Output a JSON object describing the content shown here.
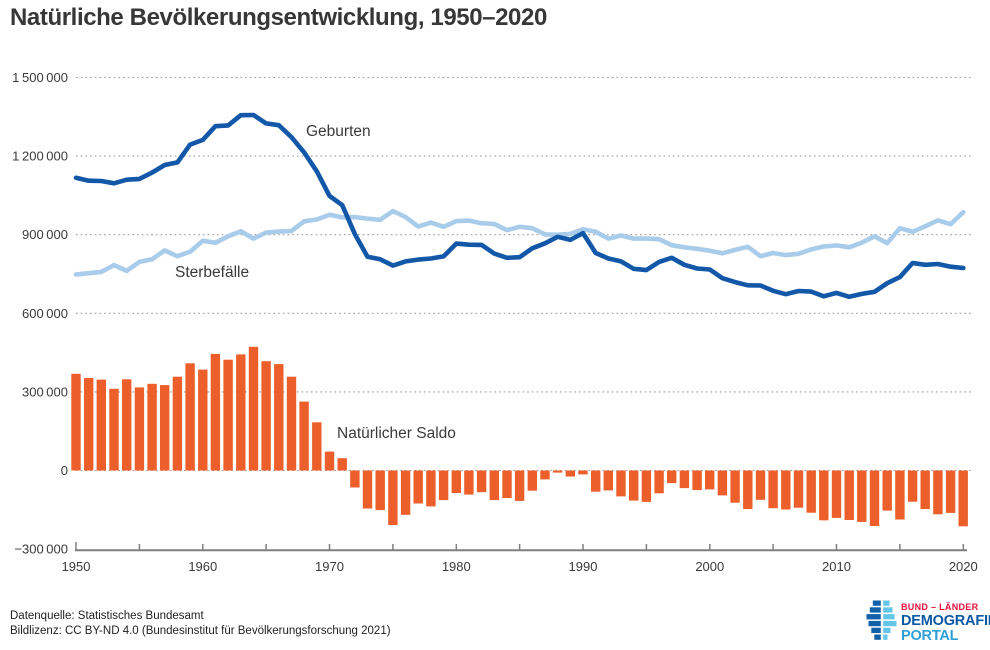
{
  "title": "Natürliche Bevölkerungsentwicklung, 1950–2020",
  "footer": {
    "source": "Datenquelle: Statistisches Bundesamt",
    "license": "Bildlizenz: CC BY-ND 4.0 (Bundesinstitut für Bevölkerungsforschung 2021)"
  },
  "logo": {
    "line1": "BUND – LÄNDER",
    "line2": "DEMOGRAFIE",
    "line3": "PORTAL"
  },
  "colors": {
    "births_line": "#1358a8",
    "deaths_line": "#a8cce9",
    "saldo_bar": "#ec5e2a",
    "grid": "#9b9b9b",
    "axis": "#7f7f7f",
    "text": "#3a3a3a",
    "logo_red": "#e3123d",
    "logo_dark_blue": "#0a57a4",
    "logo_light_blue": "#2e9fd6"
  },
  "chart_data": {
    "type": "combo",
    "title": "Natürliche Bevölkerungsentwicklung, 1950–2020",
    "x_label": "",
    "y_label": "",
    "ylim": [
      -300000,
      1500000
    ],
    "grid": "horizontal dotted",
    "years": [
      1950,
      1951,
      1952,
      1953,
      1954,
      1955,
      1956,
      1957,
      1958,
      1959,
      1960,
      1961,
      1962,
      1963,
      1964,
      1965,
      1966,
      1967,
      1968,
      1969,
      1970,
      1971,
      1972,
      1973,
      1974,
      1975,
      1976,
      1977,
      1978,
      1979,
      1980,
      1981,
      1982,
      1983,
      1984,
      1985,
      1986,
      1987,
      1988,
      1989,
      1990,
      1991,
      1992,
      1993,
      1994,
      1995,
      1996,
      1997,
      1998,
      1999,
      2000,
      2001,
      2002,
      2003,
      2004,
      2005,
      2006,
      2007,
      2008,
      2009,
      2010,
      2011,
      2012,
      2013,
      2014,
      2015,
      2016,
      2017,
      2018,
      2019,
      2020
    ],
    "series": [
      {
        "name": "Geburten",
        "type": "line",
        "color": "#1358a8",
        "values": [
          1117000,
          1106000,
          1105000,
          1096000,
          1110000,
          1113000,
          1137000,
          1166000,
          1176000,
          1244000,
          1262000,
          1314000,
          1317000,
          1356000,
          1357000,
          1325000,
          1318000,
          1272000,
          1214000,
          1142000,
          1048000,
          1013000,
          902000,
          816000,
          806000,
          782000,
          798000,
          805000,
          809000,
          817000,
          866000,
          862000,
          861000,
          828000,
          812000,
          814000,
          848000,
          867000,
          892000,
          880000,
          906000,
          830000,
          809000,
          798000,
          770000,
          765000,
          796000,
          812000,
          785000,
          771000,
          767000,
          734000,
          719000,
          707000,
          706000,
          686000,
          673000,
          685000,
          683000,
          665000,
          678000,
          663000,
          674000,
          682000,
          715000,
          738000,
          792000,
          785000,
          788000,
          778000,
          773000
        ]
      },
      {
        "name": "Sterbefälle",
        "type": "line",
        "color": "#a8cce9",
        "values": [
          748000,
          753000,
          758000,
          784000,
          762000,
          796000,
          806000,
          840000,
          818000,
          835000,
          877000,
          869000,
          894000,
          913000,
          885000,
          908000,
          912000,
          914000,
          951000,
          958000,
          976000,
          966000,
          967000,
          961000,
          957000,
          990000,
          967000,
          931000,
          946000,
          930000,
          952000,
          954000,
          944000,
          941000,
          917000,
          930000,
          925000,
          901000,
          900000,
          903000,
          921000,
          911000,
          885000,
          897000,
          885000,
          885000,
          883000,
          860000,
          852000,
          846000,
          839000,
          829000,
          842000,
          854000,
          818000,
          830000,
          822000,
          827000,
          844000,
          855000,
          859000,
          852000,
          870000,
          894000,
          868000,
          925000,
          911000,
          932000,
          955000,
          940000,
          986000
        ]
      },
      {
        "name": "Natürlicher Saldo",
        "type": "bar",
        "color": "#ec5e2a",
        "values": [
          369000,
          353000,
          347000,
          312000,
          348000,
          317000,
          331000,
          326000,
          358000,
          409000,
          385000,
          445000,
          423000,
          443000,
          472000,
          417000,
          406000,
          358000,
          263000,
          184000,
          72000,
          47000,
          -65000,
          -145000,
          -151000,
          -208000,
          -169000,
          -126000,
          -137000,
          -113000,
          -86000,
          -92000,
          -83000,
          -113000,
          -105000,
          -116000,
          -77000,
          -34000,
          -8000,
          -23000,
          -15000,
          -81000,
          -76000,
          -99000,
          -115000,
          -120000,
          -87000,
          -48000,
          -67000,
          -75000,
          -72000,
          -95000,
          -123000,
          -147000,
          -112000,
          -144000,
          -149000,
          -142000,
          -161000,
          -190000,
          -181000,
          -189000,
          -196000,
          -212000,
          -153000,
          -187000,
          -119000,
          -147000,
          -167000,
          -162000,
          -213000
        ]
      }
    ],
    "y_ticks": {
      "values": [
        1500000,
        1200000,
        900000,
        600000,
        300000,
        0,
        -300000
      ],
      "labels": [
        "1 500 000",
        "1 200 000",
        "900 000",
        "600 000",
        "300 000",
        "0",
        "−300 000"
      ]
    },
    "x_tick_labels": [
      "1950",
      "1960",
      "1970",
      "1980",
      "1990",
      "2000",
      "2010",
      "2020"
    ],
    "minor_x_tick_step_years": 5
  }
}
